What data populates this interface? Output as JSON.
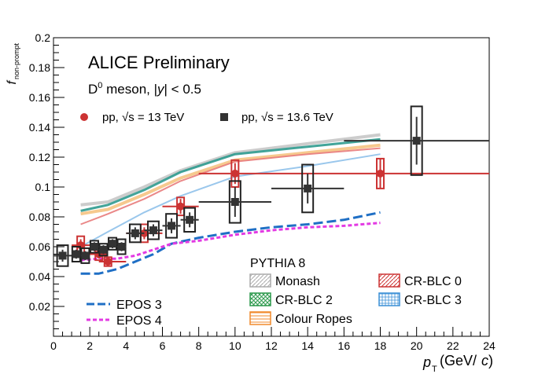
{
  "chart_data": {
    "type": "scatter",
    "title": "ALICE Preliminary",
    "subtitle": "D0 meson, |y| < 0.5",
    "subtitle_parts": {
      "particle": "D",
      "superscript": "0",
      "rest_prefix": " meson, |",
      "y": "y",
      "rest_suffix": "| < 0.5"
    },
    "xlabel": {
      "p": "p",
      "sub": "T",
      "unit_open": "(GeV/",
      "unit_c": "c",
      "unit_close": ")"
    },
    "ylabel": {
      "f": "f",
      "sub": "non-prompt"
    },
    "xlim": [
      0,
      24
    ],
    "ylim": [
      0,
      0.2
    ],
    "xticks": [
      "0",
      "2",
      "4",
      "6",
      "8",
      "10",
      "12",
      "14",
      "16",
      "18",
      "20",
      "22",
      "24"
    ],
    "yticks": [
      "0.02",
      "0.04",
      "0.06",
      "0.08",
      "0.1",
      "0.12",
      "0.14",
      "0.16",
      "0.18",
      "0.2"
    ],
    "legend_data": {
      "pp13": {
        "label_prefix": "pp, ",
        "sqrt": "√",
        "label_s": "s",
        "label_suffix": " = 13 TeV"
      },
      "pp136": {
        "label_prefix": "pp, ",
        "sqrt": "√",
        "label_s": "s",
        "label_suffix": " = 13.6 TeV"
      }
    },
    "legend_models": {
      "header": "PYTHIA 8",
      "items": [
        {
          "key": "monash",
          "label": "Monash"
        },
        {
          "key": "crblc2",
          "label": "CR-BLC 2"
        },
        {
          "key": "colourropes",
          "label": "Colour Ropes"
        },
        {
          "key": "crblc0",
          "label": "CR-BLC 0"
        },
        {
          "key": "crblc3",
          "label": "CR-BLC 3"
        }
      ]
    },
    "legend_epos": [
      {
        "key": "epos3",
        "label": "EPOS 3"
      },
      {
        "key": "epos4",
        "label": "EPOS 4"
      }
    ],
    "colors": {
      "pp13": "#cc3333",
      "pp136": "#333333",
      "monash": "#bbbbbb",
      "crblc0": "#e87b7b",
      "crblc2": "#2e9a8e",
      "crblc3": "#8fc1ea",
      "colourropes": "#f5c07a",
      "epos3": "#1f6fc5",
      "epos4": "#e33ae3"
    },
    "series": [
      {
        "key": "pp13",
        "name": "pp, √s = 13 TeV",
        "marker": "circle",
        "points": [
          {
            "x": 1.5,
            "y": 0.061,
            "xlo": 1,
            "xhi": 2,
            "stat": 0.004,
            "syst": 0.006
          },
          {
            "x": 2.5,
            "y": 0.055,
            "xlo": 2,
            "xhi": 3,
            "stat": 0.003,
            "syst": 0.004
          },
          {
            "x": 3.0,
            "y": 0.05,
            "xlo": 2.5,
            "xhi": 4,
            "stat": 0.003,
            "syst": 0.003
          },
          {
            "x": 5.0,
            "y": 0.069,
            "xlo": 4,
            "xhi": 6,
            "stat": 0.004,
            "syst": 0.006
          },
          {
            "x": 7.0,
            "y": 0.087,
            "xlo": 6,
            "xhi": 8,
            "stat": 0.005,
            "syst": 0.006
          },
          {
            "x": 10.0,
            "y": 0.109,
            "xlo": 8,
            "xhi": 12,
            "stat": 0.007,
            "syst": 0.009
          },
          {
            "x": 18.0,
            "y": 0.109,
            "xlo": 12,
            "xhi": 24,
            "stat": 0.01,
            "syst": 0.01
          }
        ]
      },
      {
        "key": "pp136",
        "name": "pp, √s = 13.6 TeV",
        "marker": "square",
        "points": [
          {
            "x": 0.5,
            "y": 0.054,
            "xlo": 0,
            "xhi": 1,
            "stat": 0.004,
            "syst": 0.007
          },
          {
            "x": 1.25,
            "y": 0.055,
            "xlo": 1,
            "xhi": 1.5,
            "stat": 0.003,
            "syst": 0.005
          },
          {
            "x": 1.75,
            "y": 0.054,
            "xlo": 1.5,
            "xhi": 2,
            "stat": 0.003,
            "syst": 0.005
          },
          {
            "x": 2.25,
            "y": 0.06,
            "xlo": 2,
            "xhi": 2.5,
            "stat": 0.003,
            "syst": 0.004
          },
          {
            "x": 2.75,
            "y": 0.058,
            "xlo": 2.5,
            "xhi": 3,
            "stat": 0.003,
            "syst": 0.004
          },
          {
            "x": 3.25,
            "y": 0.062,
            "xlo": 3,
            "xhi": 3.5,
            "stat": 0.003,
            "syst": 0.004
          },
          {
            "x": 3.75,
            "y": 0.06,
            "xlo": 3.5,
            "xhi": 4,
            "stat": 0.003,
            "syst": 0.005
          },
          {
            "x": 4.5,
            "y": 0.069,
            "xlo": 4,
            "xhi": 5,
            "stat": 0.004,
            "syst": 0.006
          },
          {
            "x": 5.5,
            "y": 0.071,
            "xlo": 5,
            "xhi": 6,
            "stat": 0.004,
            "syst": 0.006
          },
          {
            "x": 6.5,
            "y": 0.074,
            "xlo": 6,
            "xhi": 7,
            "stat": 0.005,
            "syst": 0.008
          },
          {
            "x": 7.5,
            "y": 0.078,
            "xlo": 7,
            "xhi": 8,
            "stat": 0.005,
            "syst": 0.008
          },
          {
            "x": 10.0,
            "y": 0.09,
            "xlo": 8,
            "xhi": 12,
            "stat": 0.01,
            "syst": 0.014
          },
          {
            "x": 14.0,
            "y": 0.099,
            "xlo": 12,
            "xhi": 16,
            "stat": 0.01,
            "syst": 0.016
          },
          {
            "x": 20.0,
            "y": 0.131,
            "xlo": 16,
            "xhi": 24,
            "stat": 0.016,
            "syst": 0.023
          }
        ]
      }
    ],
    "model_curves": [
      {
        "key": "monash",
        "name": "Monash",
        "x": [
          1.5,
          3,
          5,
          7,
          10,
          14,
          18
        ],
        "y": [
          0.088,
          0.09,
          0.1,
          0.111,
          0.123,
          0.129,
          0.135
        ]
      },
      {
        "key": "crblc2",
        "name": "CR-BLC 2",
        "x": [
          1.5,
          3,
          5,
          7,
          10,
          14,
          18
        ],
        "y": [
          0.084,
          0.088,
          0.098,
          0.11,
          0.122,
          0.127,
          0.132
        ]
      },
      {
        "key": "colourropes",
        "name": "Colour Ropes",
        "x": [
          1.5,
          3,
          5,
          7,
          10,
          14,
          18
        ],
        "y": [
          0.082,
          0.085,
          0.095,
          0.106,
          0.118,
          0.123,
          0.128
        ]
      },
      {
        "key": "crblc0",
        "name": "CR-BLC 0",
        "x": [
          1.5,
          3,
          5,
          7,
          10,
          14,
          18
        ],
        "y": [
          0.075,
          0.082,
          0.092,
          0.104,
          0.117,
          0.122,
          0.126
        ]
      },
      {
        "key": "crblc3",
        "name": "CR-BLC 3",
        "x": [
          1.5,
          3,
          5,
          7,
          10,
          14,
          18
        ],
        "y": [
          0.06,
          0.07,
          0.083,
          0.094,
          0.107,
          0.114,
          0.122
        ]
      },
      {
        "key": "epos3",
        "name": "EPOS 3",
        "x": [
          1.5,
          2.5,
          3.5,
          4.5,
          5.5,
          6.5,
          8,
          10,
          12,
          14,
          16,
          18
        ],
        "y": [
          0.042,
          0.042,
          0.045,
          0.05,
          0.055,
          0.062,
          0.066,
          0.07,
          0.073,
          0.075,
          0.078,
          0.083
        ]
      },
      {
        "key": "epos4",
        "name": "EPOS 4",
        "x": [
          1.5,
          2.5,
          3.5,
          4.5,
          5.5,
          6.5,
          8,
          10,
          12,
          14,
          16,
          18
        ],
        "y": [
          0.051,
          0.052,
          0.052,
          0.054,
          0.058,
          0.062,
          0.064,
          0.068,
          0.071,
          0.073,
          0.074,
          0.076
        ]
      }
    ]
  }
}
